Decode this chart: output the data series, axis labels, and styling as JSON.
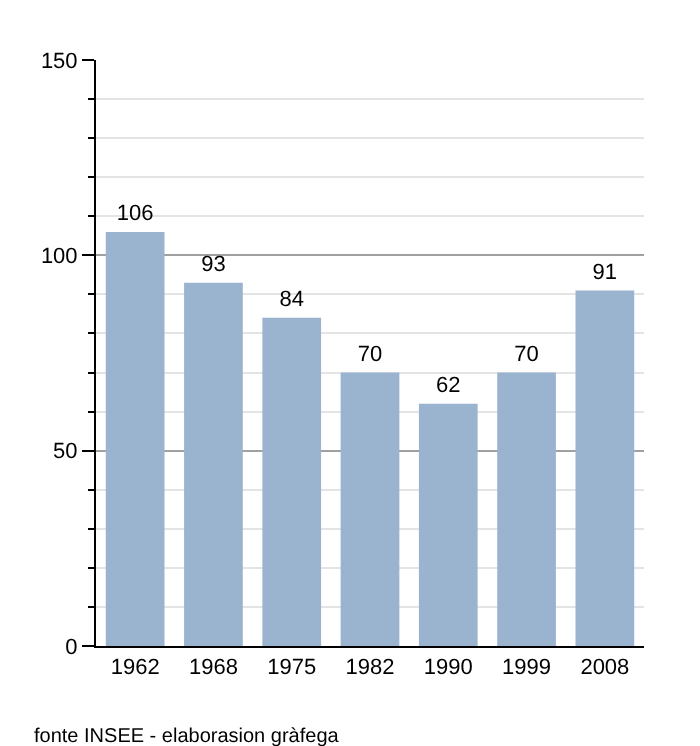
{
  "chart_data": {
    "type": "bar",
    "categories": [
      "1962",
      "1968",
      "1975",
      "1982",
      "1990",
      "1999",
      "2008"
    ],
    "values": [
      106,
      93,
      84,
      70,
      62,
      70,
      91
    ],
    "color": "#9ab4cf",
    "ylim": [
      0,
      150
    ],
    "yticks": [
      0,
      {
        "value": 10,
        "label": null
      },
      {
        "value": 20,
        "label": null
      },
      {
        "value": 30,
        "label": null
      },
      {
        "value": 40,
        "label": null
      },
      50,
      {
        "value": 60,
        "label": null
      },
      {
        "value": 70,
        "label": null
      },
      {
        "value": 80,
        "label": null
      },
      {
        "value": 90,
        "label": null
      },
      100,
      {
        "value": 110,
        "label": null
      },
      {
        "value": 120,
        "label": null
      },
      {
        "value": 130,
        "label": null
      },
      {
        "value": 140,
        "label": null
      },
      150
    ],
    "grid": true,
    "data_labels": true,
    "annotations": [
      "fonte INSEE - elaborasion gràfega"
    ]
  }
}
